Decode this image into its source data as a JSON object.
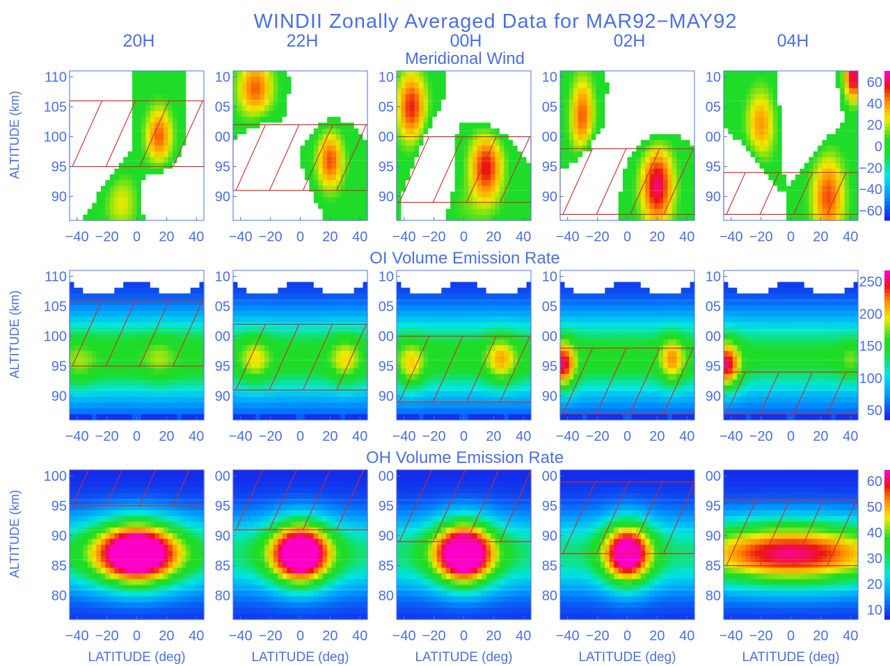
{
  "title": "WINDII Zonally Averaged Data for MAR92−MAY92",
  "columns": [
    "20H",
    "22H",
    "00H",
    "02H",
    "04H"
  ],
  "colors": {
    "text": "#4a6fe6",
    "hatch": "#d12a2a",
    "contour": "#ffffff"
  },
  "chart_data": [
    {
      "type": "heatmap",
      "title": "Meridional Wind",
      "ylabel": "ALTITUDE (km)",
      "xlabel": "",
      "xlim": [
        -45,
        45
      ],
      "ylim": [
        86,
        111
      ],
      "x_ticks": [
        "−40",
        "−20",
        "0",
        "20",
        "40"
      ],
      "y_ticks": [
        110,
        105,
        100,
        95,
        90
      ],
      "y_tick_labels_first": [
        "110",
        "105",
        "100",
        "95",
        "90"
      ],
      "y_tick_labels_other": [
        "10",
        "05",
        "00",
        "95",
        "90"
      ],
      "colorbar_ticks": [
        "60",
        "40",
        "20",
        "0",
        "−20",
        "−40",
        "−60"
      ],
      "vmin": -70,
      "vmax": 70,
      "panels": [
        {
          "time": "20H",
          "shaded_band": [
            95,
            106
          ],
          "blobs": [
            [
              -25,
              98.5,
              12,
              6,
              -28
            ],
            [
              15,
              100,
              9,
              5,
              48
            ],
            [
              -10,
              89,
              12,
              5,
              25
            ],
            [
              20,
              90,
              15,
              5,
              -20
            ],
            [
              42,
              97,
              6,
              6,
              -25
            ]
          ]
        },
        {
          "time": "22H",
          "shaded_band": [
            91,
            102
          ],
          "blobs": [
            [
              -30,
              108,
              12,
              5,
              48
            ],
            [
              -25,
              96,
              10,
              6,
              -30
            ],
            [
              20,
              96,
              9,
              5,
              50
            ],
            [
              15,
              108,
              14,
              6,
              -18
            ],
            [
              -5,
              88,
              14,
              4,
              -10
            ]
          ]
        },
        {
          "time": "00H",
          "shaded_band": [
            89,
            100
          ],
          "blobs": [
            [
              -35,
              105,
              10,
              6,
              55
            ],
            [
              -20,
              94,
              9,
              6,
              -45
            ],
            [
              15,
              95,
              11,
              6,
              58
            ],
            [
              20,
              106,
              14,
              6,
              -22
            ],
            [
              0,
              88,
              18,
              4,
              8
            ]
          ]
        },
        {
          "time": "02H",
          "shaded_band": [
            87,
            98
          ],
          "blobs": [
            [
              -30,
              103,
              8,
              7,
              50
            ],
            [
              -25,
              91,
              9,
              7,
              -60
            ],
            [
              20,
              92,
              11,
              7,
              65
            ],
            [
              15,
              104,
              15,
              7,
              -20
            ]
          ]
        },
        {
          "time": "04H",
          "shaded_band": [
            87,
            94
          ],
          "blobs": [
            [
              -20,
              102,
              10,
              6,
              40
            ],
            [
              -30,
              90,
              10,
              6,
              -45
            ],
            [
              25,
              90,
              11,
              7,
              50
            ],
            [
              10,
              104,
              15,
              6,
              -25
            ],
            [
              42,
              110,
              6,
              4,
              65
            ]
          ]
        }
      ]
    },
    {
      "type": "heatmap",
      "title": "OI Volume Emission Rate",
      "ylabel": "ALTITUDE (km)",
      "xlabel": "",
      "xlim": [
        -45,
        45
      ],
      "ylim": [
        86,
        111
      ],
      "x_ticks": [
        "−40",
        "−20",
        "0",
        "20",
        "40"
      ],
      "y_ticks": [
        110,
        105,
        100,
        95,
        90
      ],
      "y_tick_labels_first": [
        "110",
        "105",
        "100",
        "95",
        "90"
      ],
      "y_tick_labels_other": [
        "10",
        "05",
        "00",
        "95",
        "90"
      ],
      "colorbar_ticks": [
        "250",
        "200",
        "150",
        "100",
        "50"
      ],
      "vmin": 0,
      "vmax": 300,
      "panels": [
        {
          "time": "20H",
          "shaded_band": [
            95,
            106
          ],
          "peak": 160,
          "blobs": [
            [
              -38,
              95,
              10,
              4,
              30
            ],
            [
              15,
              96,
              10,
              4,
              30
            ]
          ]
        },
        {
          "time": "22H",
          "shaded_band": [
            91,
            102
          ],
          "peak": 150,
          "blobs": [
            [
              -30,
              96,
              10,
              4,
              60
            ],
            [
              30,
              96,
              10,
              4,
              60
            ]
          ]
        },
        {
          "time": "00H",
          "shaded_band": [
            89,
            100
          ],
          "peak": 150,
          "blobs": [
            [
              -35,
              95,
              9,
              4,
              70
            ],
            [
              25,
              96,
              10,
              4,
              80
            ]
          ]
        },
        {
          "time": "02H",
          "shaded_band": [
            87,
            98
          ],
          "peak": 150,
          "blobs": [
            [
              -43,
              95,
              8,
              4,
              140
            ],
            [
              30,
              96,
              8,
              4,
              90
            ]
          ]
        },
        {
          "time": "04H",
          "shaded_band": [
            87,
            94
          ],
          "peak": 140,
          "blobs": [
            [
              -43,
              95,
              9,
              4,
              150
            ],
            [
              40,
              96,
              8,
              3,
              40
            ]
          ]
        }
      ]
    },
    {
      "type": "heatmap",
      "title": "OH Volume Emission Rate",
      "ylabel": "ALTITUDE (km)",
      "xlabel": "LATITUDE (deg)",
      "xlim": [
        -45,
        45
      ],
      "ylim": [
        76,
        101
      ],
      "x_ticks": [
        "−40",
        "−20",
        "0",
        "20",
        "40"
      ],
      "y_ticks": [
        100,
        95,
        90,
        85,
        80
      ],
      "y_tick_labels_first": [
        "100",
        "95",
        "90",
        "85",
        "80"
      ],
      "y_tick_labels_other": [
        "00",
        "95",
        "90",
        "85",
        "80"
      ],
      "colorbar_ticks": [
        "60",
        "50",
        "40",
        "30",
        "20",
        "10"
      ],
      "vmin": 0,
      "vmax": 62,
      "panels": [
        {
          "time": "20H",
          "shaded_band": [
            95,
            101
          ],
          "peak": 58,
          "peak_alt": 87,
          "width": 28
        },
        {
          "time": "22H",
          "shaded_band": [
            91,
            101
          ],
          "peak": 56,
          "peak_alt": 87,
          "width": 20
        },
        {
          "time": "00H",
          "shaded_band": [
            89,
            101
          ],
          "peak": 57,
          "peak_alt": 87,
          "width": 20
        },
        {
          "time": "02H",
          "shaded_band": [
            87,
            99
          ],
          "peak": 48,
          "peak_alt": 87,
          "width": 16
        },
        {
          "time": "04H",
          "shaded_band": [
            85,
            96
          ],
          "peak": 36,
          "peak_alt": 87,
          "width": 60
        }
      ]
    }
  ]
}
